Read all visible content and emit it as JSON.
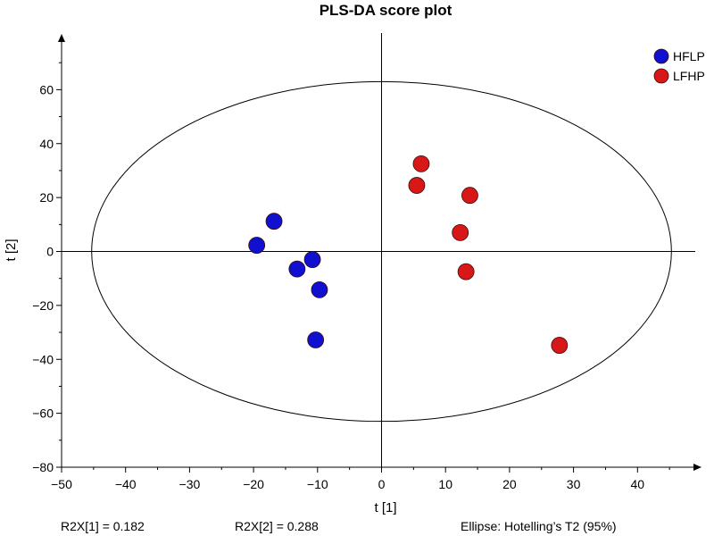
{
  "chart_data": {
    "type": "scatter",
    "title": "PLS-DA score plot",
    "xlabel": "t [1]",
    "ylabel": "t [2]",
    "xlim": [
      -50,
      50
    ],
    "ylim": [
      -80,
      80
    ],
    "xticks": [
      -50,
      -40,
      -30,
      -20,
      -10,
      0,
      10,
      20,
      30,
      40
    ],
    "yticks": [
      -80,
      -60,
      -40,
      -20,
      0,
      20,
      40,
      60
    ],
    "tick_labels_x": [
      "−50",
      "−40",
      "−30",
      "−20",
      "−10",
      "0",
      "10",
      "20",
      "30",
      "40"
    ],
    "tick_labels_y": [
      "−80",
      "−60",
      "−40",
      "−20",
      "0",
      "20",
      "40",
      "60"
    ],
    "grid": false,
    "legend_position": "top-right",
    "series": [
      {
        "name": "HFLP",
        "color": "#1010d0",
        "points": [
          [
            -16.8,
            11.2
          ],
          [
            -19.5,
            2.3
          ],
          [
            -13.2,
            -6.5
          ],
          [
            -10.8,
            -3.0
          ],
          [
            -9.7,
            -14.2
          ],
          [
            -10.3,
            -32.8
          ]
        ]
      },
      {
        "name": "LFHP",
        "color": "#d81818",
        "points": [
          [
            6.2,
            32.5
          ],
          [
            5.5,
            24.5
          ],
          [
            13.8,
            20.8
          ],
          [
            12.3,
            7.0
          ],
          [
            13.2,
            -7.5
          ],
          [
            27.8,
            -34.8
          ]
        ]
      }
    ],
    "ellipse": {
      "label": "Hotelling's T2 (95%)",
      "rx": 45.3,
      "ry": 63.0
    },
    "annotations": {
      "r2x1": "R2X[1] = 0.182",
      "r2x2": "R2X[2] = 0.288",
      "ellipse_note": "Ellipse: Hotelling’s T2 (95%)"
    }
  }
}
